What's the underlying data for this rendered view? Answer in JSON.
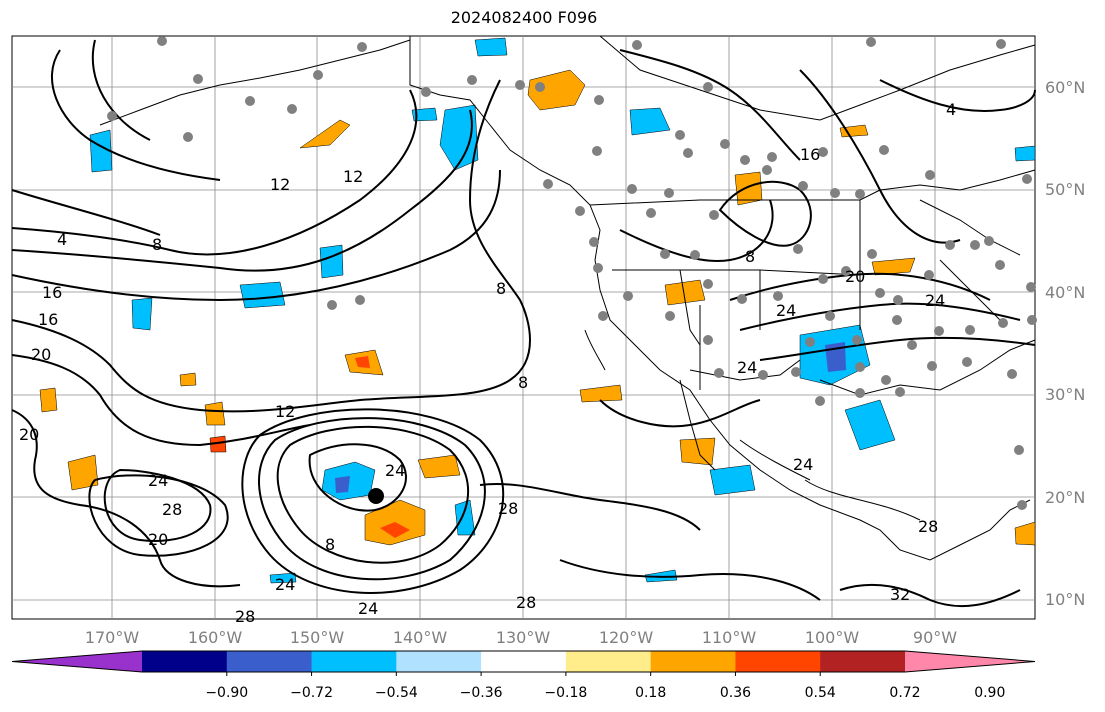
{
  "title": "2024082400 F096",
  "map": {
    "lon_ticks": [
      "170°W",
      "160°W",
      "150°W",
      "140°W",
      "130°W",
      "120°W",
      "110°W",
      "100°W",
      "90°W"
    ],
    "lat_ticks": [
      "60°N",
      "50°N",
      "40°N",
      "30°N",
      "20°N",
      "10°N"
    ],
    "contour_labels": [
      "4",
      "8",
      "12",
      "12",
      "16",
      "16",
      "20",
      "20",
      "20",
      "24",
      "24",
      "24",
      "24",
      "24",
      "28",
      "28",
      "28",
      "28",
      "32",
      "8",
      "8",
      "8",
      "12",
      "16",
      "4",
      "24",
      "20",
      "28",
      "24",
      "24",
      "8"
    ]
  },
  "colorbar": {
    "colors": [
      "#9932cc",
      "#00008b",
      "#3a5fcd",
      "#00bfff",
      "#b0e2ff",
      "#ffffff",
      "#ffec8b",
      "#ffa500",
      "#ff4500",
      "#b22222",
      "#ff88aa"
    ],
    "labels": [
      "−0.90",
      "−0.72",
      "−0.54",
      "−0.36",
      "−0.18",
      "0.18",
      "0.36",
      "0.54",
      "0.72",
      "0.90"
    ]
  }
}
